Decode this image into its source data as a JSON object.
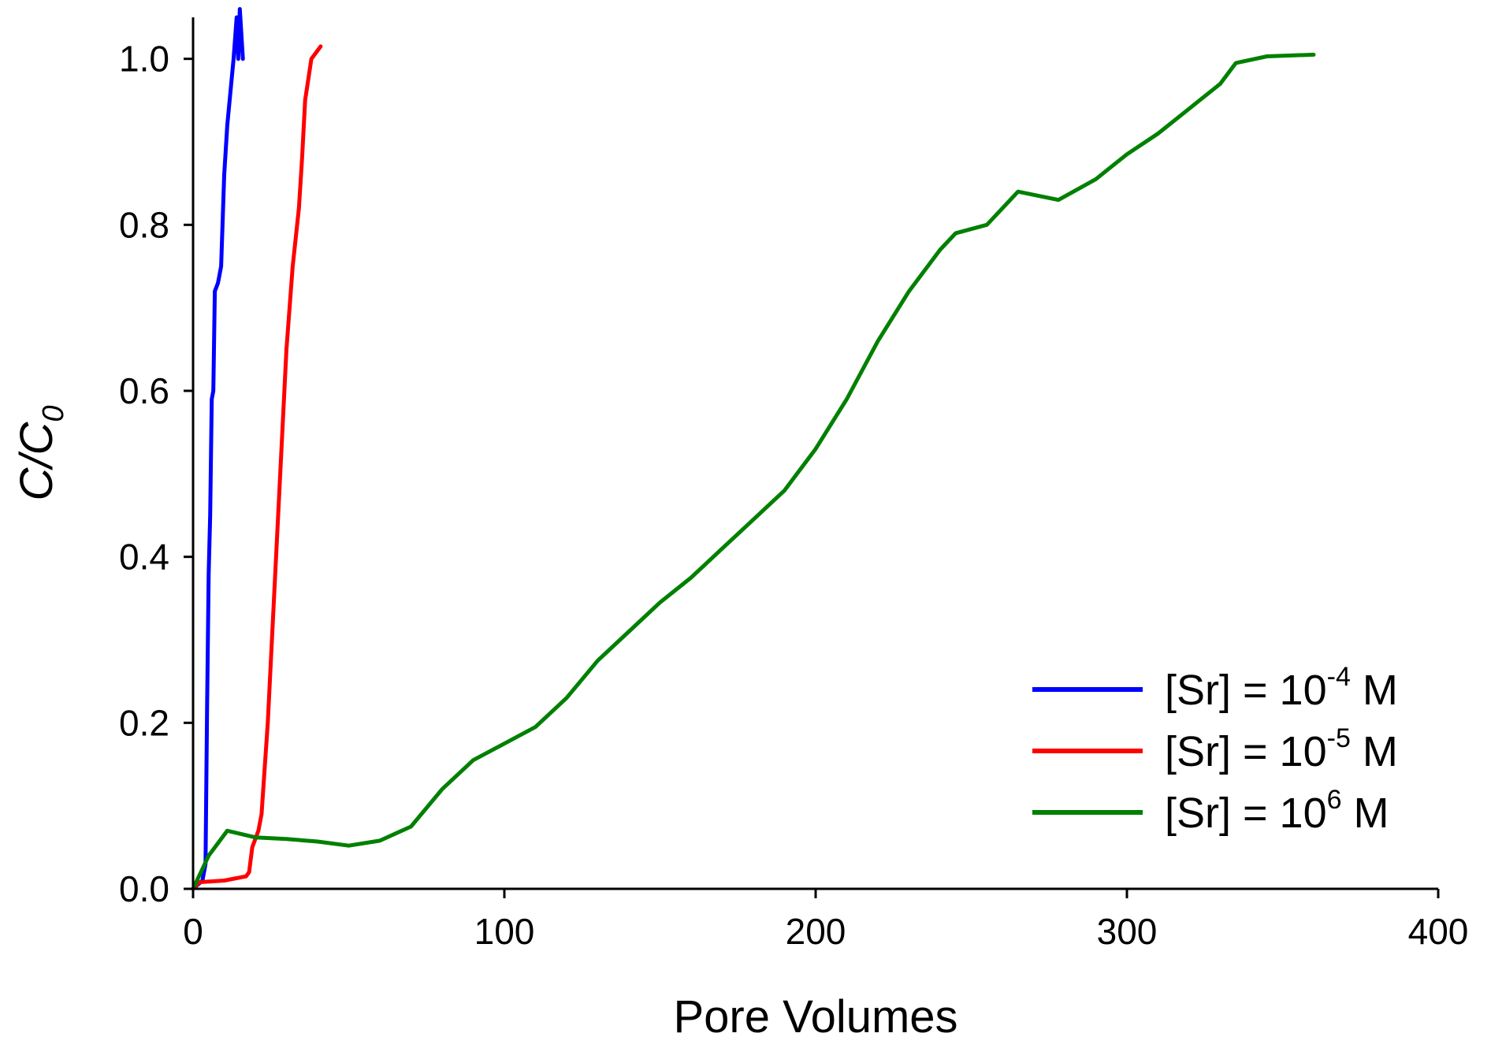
{
  "chart_data": {
    "type": "line",
    "title": "",
    "xlabel": "Pore Volumes",
    "ylabel": {
      "main": "C/C",
      "subscript": "0"
    },
    "xlim": [
      0,
      400
    ],
    "ylim": [
      0,
      1.05
    ],
    "x_ticks": [
      0,
      100,
      200,
      300,
      400
    ],
    "x_tick_labels": [
      "0",
      "100",
      "200",
      "300",
      "400"
    ],
    "y_ticks": [
      0,
      0.2,
      0.4,
      0.6,
      0.8,
      1.0
    ],
    "y_tick_labels": [
      "0.0",
      "0.2",
      "0.4",
      "0.6",
      "0.8",
      "1.0"
    ],
    "grid": false,
    "legend_position": "bottom-right",
    "series": [
      {
        "name": "[Sr] = 10-4 M",
        "legend": {
          "prefix": "[Sr] = 10",
          "superscript": "-4",
          "suffix": " M"
        },
        "color": "#0000ff",
        "points": [
          [
            0,
            0
          ],
          [
            3,
            0.01
          ],
          [
            4,
            0.03
          ],
          [
            4.5,
            0.22
          ],
          [
            5,
            0.38
          ],
          [
            5.5,
            0.45
          ],
          [
            6,
            0.59
          ],
          [
            6.5,
            0.6
          ],
          [
            7,
            0.72
          ],
          [
            8,
            0.73
          ],
          [
            9,
            0.75
          ],
          [
            10,
            0.86
          ],
          [
            11,
            0.92
          ],
          [
            12,
            0.96
          ],
          [
            13,
            1.0
          ],
          [
            14,
            1.05
          ],
          [
            14.5,
            1.0
          ],
          [
            15,
            1.06
          ],
          [
            16,
            1.0
          ]
        ]
      },
      {
        "name": "[Sr] = 10-5 M",
        "legend": {
          "prefix": "[Sr] = 10",
          "superscript": "-5",
          "suffix": " M"
        },
        "color": "#ff0000",
        "points": [
          [
            0,
            0
          ],
          [
            2,
            0.008
          ],
          [
            10,
            0.01
          ],
          [
            17,
            0.015
          ],
          [
            18,
            0.02
          ],
          [
            19,
            0.05
          ],
          [
            21,
            0.07
          ],
          [
            22,
            0.09
          ],
          [
            24,
            0.2
          ],
          [
            26,
            0.35
          ],
          [
            28,
            0.5
          ],
          [
            30,
            0.65
          ],
          [
            32,
            0.75
          ],
          [
            34,
            0.82
          ],
          [
            35,
            0.88
          ],
          [
            36,
            0.95
          ],
          [
            38,
            1.0
          ],
          [
            40,
            1.01
          ],
          [
            41,
            1.015
          ]
        ]
      },
      {
        "name": "[Sr] = 10 6 M",
        "legend": {
          "prefix": "[Sr] = 10",
          "superscript": "6",
          "suffix": " M"
        },
        "color": "#008000",
        "points": [
          [
            0,
            0
          ],
          [
            5,
            0.04
          ],
          [
            11,
            0.07
          ],
          [
            20,
            0.062
          ],
          [
            30,
            0.06
          ],
          [
            40,
            0.057
          ],
          [
            50,
            0.052
          ],
          [
            60,
            0.058
          ],
          [
            70,
            0.075
          ],
          [
            80,
            0.12
          ],
          [
            90,
            0.155
          ],
          [
            100,
            0.175
          ],
          [
            110,
            0.195
          ],
          [
            120,
            0.23
          ],
          [
            130,
            0.275
          ],
          [
            140,
            0.31
          ],
          [
            150,
            0.345
          ],
          [
            160,
            0.375
          ],
          [
            170,
            0.41
          ],
          [
            180,
            0.445
          ],
          [
            190,
            0.48
          ],
          [
            200,
            0.53
          ],
          [
            210,
            0.59
          ],
          [
            220,
            0.66
          ],
          [
            230,
            0.72
          ],
          [
            240,
            0.77
          ],
          [
            245,
            0.79
          ],
          [
            255,
            0.8
          ],
          [
            265,
            0.84
          ],
          [
            278,
            0.83
          ],
          [
            290,
            0.855
          ],
          [
            300,
            0.885
          ],
          [
            310,
            0.91
          ],
          [
            320,
            0.94
          ],
          [
            330,
            0.97
          ],
          [
            335,
            0.995
          ],
          [
            345,
            1.003
          ],
          [
            360,
            1.005
          ]
        ]
      }
    ]
  }
}
